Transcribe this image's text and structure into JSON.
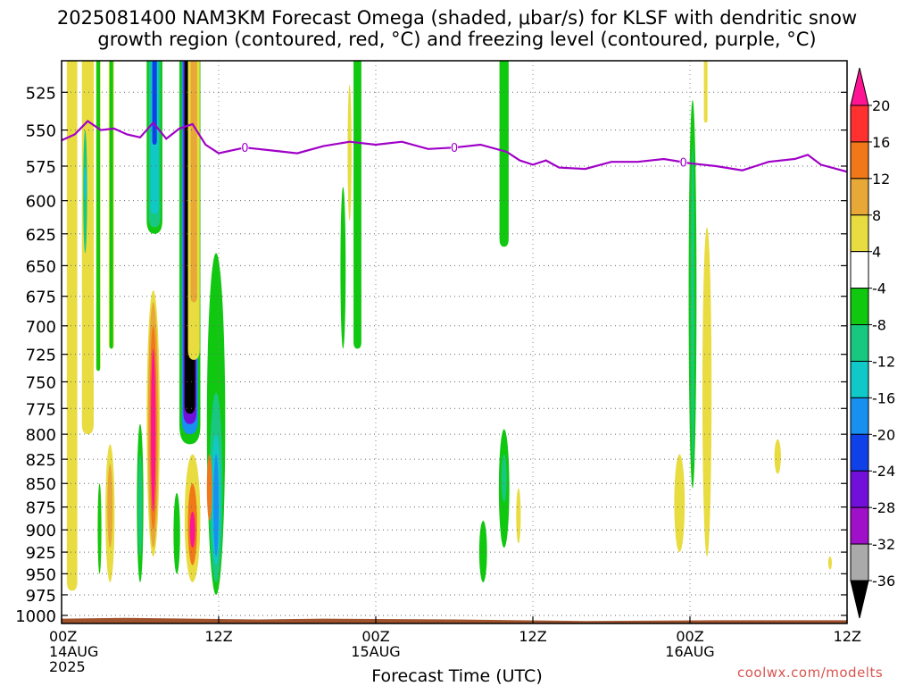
{
  "title_line1": "2025081400 NAM3KM Forecast Omega (shaded, μbar/s) for KLSF with dendritic snow",
  "title_line2": "growth region (contoured, red, °C) and freezing level (contoured, purple, °C)",
  "credit": "coolwx.com/modelts",
  "colors": {
    "freezing_line": "#a000c8",
    "ground": "#a0522d",
    "grid": "#aaaaaa"
  },
  "chart_data": {
    "type": "heatmap",
    "xlabel": "Forecast Time (UTC)",
    "ylabel": "",
    "x_range_hours": [
      0,
      60
    ],
    "y_range_mb": [
      1010,
      505
    ],
    "y_ticks": [
      525,
      550,
      575,
      600,
      625,
      650,
      675,
      700,
      725,
      750,
      775,
      800,
      825,
      850,
      875,
      900,
      925,
      950,
      975,
      1000
    ],
    "x_ticks": [
      {
        "hour": 0,
        "label": "00Z",
        "date": "14AUG",
        "year": "2025"
      },
      {
        "hour": 12,
        "label": "12Z",
        "date": "",
        "year": ""
      },
      {
        "hour": 24,
        "label": "00Z",
        "date": "15AUG",
        "year": ""
      },
      {
        "hour": 36,
        "label": "12Z",
        "date": "",
        "year": ""
      },
      {
        "hour": 48,
        "label": "00Z",
        "date": "16AUG",
        "year": ""
      },
      {
        "hour": 60,
        "label": "12Z",
        "date": "",
        "year": ""
      }
    ],
    "colorbar": {
      "labels": [
        "20",
        "16",
        "12",
        "8",
        "4",
        "-4",
        "-8",
        "-12",
        "-16",
        "-20",
        "-24",
        "-28",
        "-32",
        "-36"
      ],
      "bands": [
        {
          "range": [
            20,
            99
          ],
          "color": "#ff1493"
        },
        {
          "range": [
            16,
            20
          ],
          "color": "#ff3030"
        },
        {
          "range": [
            12,
            16
          ],
          "color": "#f07818"
        },
        {
          "range": [
            8,
            12
          ],
          "color": "#e8a838"
        },
        {
          "range": [
            4,
            8
          ],
          "color": "#e8dc40"
        },
        {
          "range": [
            -4,
            4
          ],
          "color": "#ffffff"
        },
        {
          "range": [
            -8,
            -4
          ],
          "color": "#10c810"
        },
        {
          "range": [
            -12,
            -8
          ],
          "color": "#18c880"
        },
        {
          "range": [
            -16,
            -12
          ],
          "color": "#10c8c8"
        },
        {
          "range": [
            -20,
            -16
          ],
          "color": "#1890f0"
        },
        {
          "range": [
            -24,
            -20
          ],
          "color": "#1040e8"
        },
        {
          "range": [
            -28,
            -24
          ],
          "color": "#7010d8"
        },
        {
          "range": [
            -32,
            -28
          ],
          "color": "#a010c8"
        },
        {
          "range": [
            -36,
            -32
          ],
          "color": "#aaaaaa"
        },
        {
          "range": [
            -99,
            -36
          ],
          "color": "#000000"
        }
      ]
    },
    "freezing_level_label": "0",
    "freezing_level": [
      {
        "h": 0,
        "p": 557
      },
      {
        "h": 1,
        "p": 553
      },
      {
        "h": 2,
        "p": 544
      },
      {
        "h": 3,
        "p": 550
      },
      {
        "h": 4,
        "p": 549
      },
      {
        "h": 5,
        "p": 553
      },
      {
        "h": 6,
        "p": 555
      },
      {
        "h": 7,
        "p": 545
      },
      {
        "h": 8,
        "p": 556
      },
      {
        "h": 9,
        "p": 549
      },
      {
        "h": 10,
        "p": 546
      },
      {
        "h": 11,
        "p": 560
      },
      {
        "h": 12,
        "p": 566
      },
      {
        "h": 14,
        "p": 562
      },
      {
        "h": 16,
        "p": 564
      },
      {
        "h": 18,
        "p": 566
      },
      {
        "h": 20,
        "p": 561
      },
      {
        "h": 22,
        "p": 558
      },
      {
        "h": 24,
        "p": 560
      },
      {
        "h": 26,
        "p": 558
      },
      {
        "h": 28,
        "p": 563
      },
      {
        "h": 30,
        "p": 562
      },
      {
        "h": 32,
        "p": 560
      },
      {
        "h": 34,
        "p": 565
      },
      {
        "h": 35,
        "p": 571
      },
      {
        "h": 36,
        "p": 574
      },
      {
        "h": 37,
        "p": 571
      },
      {
        "h": 38,
        "p": 576
      },
      {
        "h": 40,
        "p": 577
      },
      {
        "h": 42,
        "p": 572
      },
      {
        "h": 44,
        "p": 572
      },
      {
        "h": 46,
        "p": 570
      },
      {
        "h": 48,
        "p": 573
      },
      {
        "h": 50,
        "p": 575
      },
      {
        "h": 52,
        "p": 578
      },
      {
        "h": 53,
        "p": 575
      },
      {
        "h": 54,
        "p": 572
      },
      {
        "h": 56,
        "p": 570
      },
      {
        "h": 57,
        "p": 567
      },
      {
        "h": 58,
        "p": 574
      },
      {
        "h": 60,
        "p": 579
      }
    ],
    "freezing_level_label_hours": [
      14,
      30,
      47.5
    ],
    "ground_surface": [
      {
        "h": 0,
        "p": 1004
      },
      {
        "h": 5,
        "p": 1003
      },
      {
        "h": 10,
        "p": 1004
      },
      {
        "h": 15,
        "p": 1005
      },
      {
        "h": 20,
        "p": 1004
      },
      {
        "h": 30,
        "p": 1005
      },
      {
        "h": 40,
        "p": 1007
      },
      {
        "h": 50,
        "p": 1006
      },
      {
        "h": 60,
        "p": 1006
      }
    ],
    "omega_regions": [
      {
        "h": 0.8,
        "w": 0.8,
        "p": [
          505,
          970
        ],
        "v": 5
      },
      {
        "h": 2.0,
        "w": 0.9,
        "p": [
          505,
          800
        ],
        "v": 5
      },
      {
        "h": 1.8,
        "w": 0.3,
        "p": [
          550,
          640
        ],
        "v": -8
      },
      {
        "h": 1.8,
        "w": 0.2,
        "p": [
          575,
          600
        ],
        "v": -12
      },
      {
        "h": 2.8,
        "w": 0.35,
        "p": [
          505,
          740
        ],
        "v": 5
      },
      {
        "h": 2.8,
        "w": 0.2,
        "p": [
          505,
          740
        ],
        "v": -6
      },
      {
        "h": 3.8,
        "w": 0.4,
        "p": [
          505,
          720
        ],
        "v": 5
      },
      {
        "h": 3.8,
        "w": 0.25,
        "p": [
          505,
          720
        ],
        "v": -6
      },
      {
        "h": 3.7,
        "w": 0.7,
        "p": [
          810,
          960
        ],
        "v": 5
      },
      {
        "h": 3.7,
        "w": 0.4,
        "p": [
          830,
          920
        ],
        "v": 9
      },
      {
        "h": 2.9,
        "w": 0.3,
        "p": [
          850,
          950
        ],
        "v": 5
      },
      {
        "h": 2.9,
        "w": 0.1,
        "p": [
          850,
          950
        ],
        "v": -6
      },
      {
        "h": 6.0,
        "w": 0.5,
        "p": [
          790,
          960
        ],
        "v": -6
      },
      {
        "h": 6.0,
        "w": 0.3,
        "p": [
          820,
          930
        ],
        "v": -10
      },
      {
        "h": 7.0,
        "w": 1.0,
        "p": [
          670,
          930
        ],
        "v": 5
      },
      {
        "h": 7.0,
        "w": 0.8,
        "p": [
          680,
          920
        ],
        "v": 10
      },
      {
        "h": 7.0,
        "w": 0.55,
        "p": [
          700,
          900
        ],
        "v": 14
      },
      {
        "h": 7.0,
        "w": 0.35,
        "p": [
          720,
          880
        ],
        "v": 22
      },
      {
        "h": 7.1,
        "w": 1.2,
        "p": [
          505,
          625
        ],
        "v": -6
      },
      {
        "h": 7.1,
        "w": 0.9,
        "p": [
          505,
          620
        ],
        "v": -10
      },
      {
        "h": 7.1,
        "w": 0.6,
        "p": [
          505,
          610
        ],
        "v": -14
      },
      {
        "h": 7.1,
        "w": 0.35,
        "p": [
          505,
          560
        ],
        "v": -22
      },
      {
        "h": 8.8,
        "w": 0.5,
        "p": [
          860,
          950
        ],
        "v": -6
      },
      {
        "h": 9.8,
        "w": 1.6,
        "p": [
          505,
          810
        ],
        "v": -6
      },
      {
        "h": 9.8,
        "w": 1.25,
        "p": [
          505,
          800
        ],
        "v": -16
      },
      {
        "h": 9.8,
        "w": 1.0,
        "p": [
          505,
          790
        ],
        "v": -26
      },
      {
        "h": 9.8,
        "w": 0.8,
        "p": [
          505,
          780
        ],
        "v": -40
      },
      {
        "h": 10.1,
        "w": 0.9,
        "p": [
          505,
          730
        ],
        "v": 5
      },
      {
        "h": 10.1,
        "w": 0.5,
        "p": [
          505,
          680
        ],
        "v": 10
      },
      {
        "h": 10.0,
        "w": 1.2,
        "p": [
          820,
          960
        ],
        "v": 5
      },
      {
        "h": 10.0,
        "w": 0.7,
        "p": [
          850,
          940
        ],
        "v": 14
      },
      {
        "h": 10.0,
        "w": 0.4,
        "p": [
          880,
          920
        ],
        "v": 22
      },
      {
        "h": 11.8,
        "w": 1.4,
        "p": [
          640,
          975
        ],
        "v": -6
      },
      {
        "h": 11.8,
        "w": 1.0,
        "p": [
          760,
          960
        ],
        "v": -10
      },
      {
        "h": 11.8,
        "w": 0.7,
        "p": [
          800,
          940
        ],
        "v": -14
      },
      {
        "h": 11.8,
        "w": 0.4,
        "p": [
          820,
          930
        ],
        "v": -18
      },
      {
        "h": 11.3,
        "w": 0.4,
        "p": [
          820,
          890
        ],
        "v": 14
      },
      {
        "h": 21.5,
        "w": 0.4,
        "p": [
          590,
          720
        ],
        "v": -6
      },
      {
        "h": 22.0,
        "w": 0.3,
        "p": [
          520,
          615
        ],
        "v": 5
      },
      {
        "h": 22.6,
        "w": 0.6,
        "p": [
          505,
          720
        ],
        "v": -6
      },
      {
        "h": 33.8,
        "w": 0.8,
        "p": [
          795,
          920
        ],
        "v": -6
      },
      {
        "h": 33.8,
        "w": 0.4,
        "p": [
          820,
          870
        ],
        "v": -10
      },
      {
        "h": 33.8,
        "w": 0.7,
        "p": [
          505,
          635
        ],
        "v": -6
      },
      {
        "h": 34.9,
        "w": 0.35,
        "p": [
          855,
          915
        ],
        "v": 5
      },
      {
        "h": 32.2,
        "w": 0.6,
        "p": [
          890,
          960
        ],
        "v": -6
      },
      {
        "h": 47.2,
        "w": 0.8,
        "p": [
          820,
          925
        ],
        "v": 5
      },
      {
        "h": 48.2,
        "w": 0.6,
        "p": [
          530,
          855
        ],
        "v": -6
      },
      {
        "h": 48.2,
        "w": 0.25,
        "p": [
          560,
          830
        ],
        "v": -10
      },
      {
        "h": 49.3,
        "w": 0.7,
        "p": [
          620,
          930
        ],
        "v": 5
      },
      {
        "h": 49.2,
        "w": 0.2,
        "p": [
          505,
          545
        ],
        "v": 5
      },
      {
        "h": 54.7,
        "w": 0.5,
        "p": [
          805,
          840
        ],
        "v": 5
      },
      {
        "h": 58.7,
        "w": 0.2,
        "p": [
          930,
          945
        ],
        "v": 5
      }
    ]
  }
}
